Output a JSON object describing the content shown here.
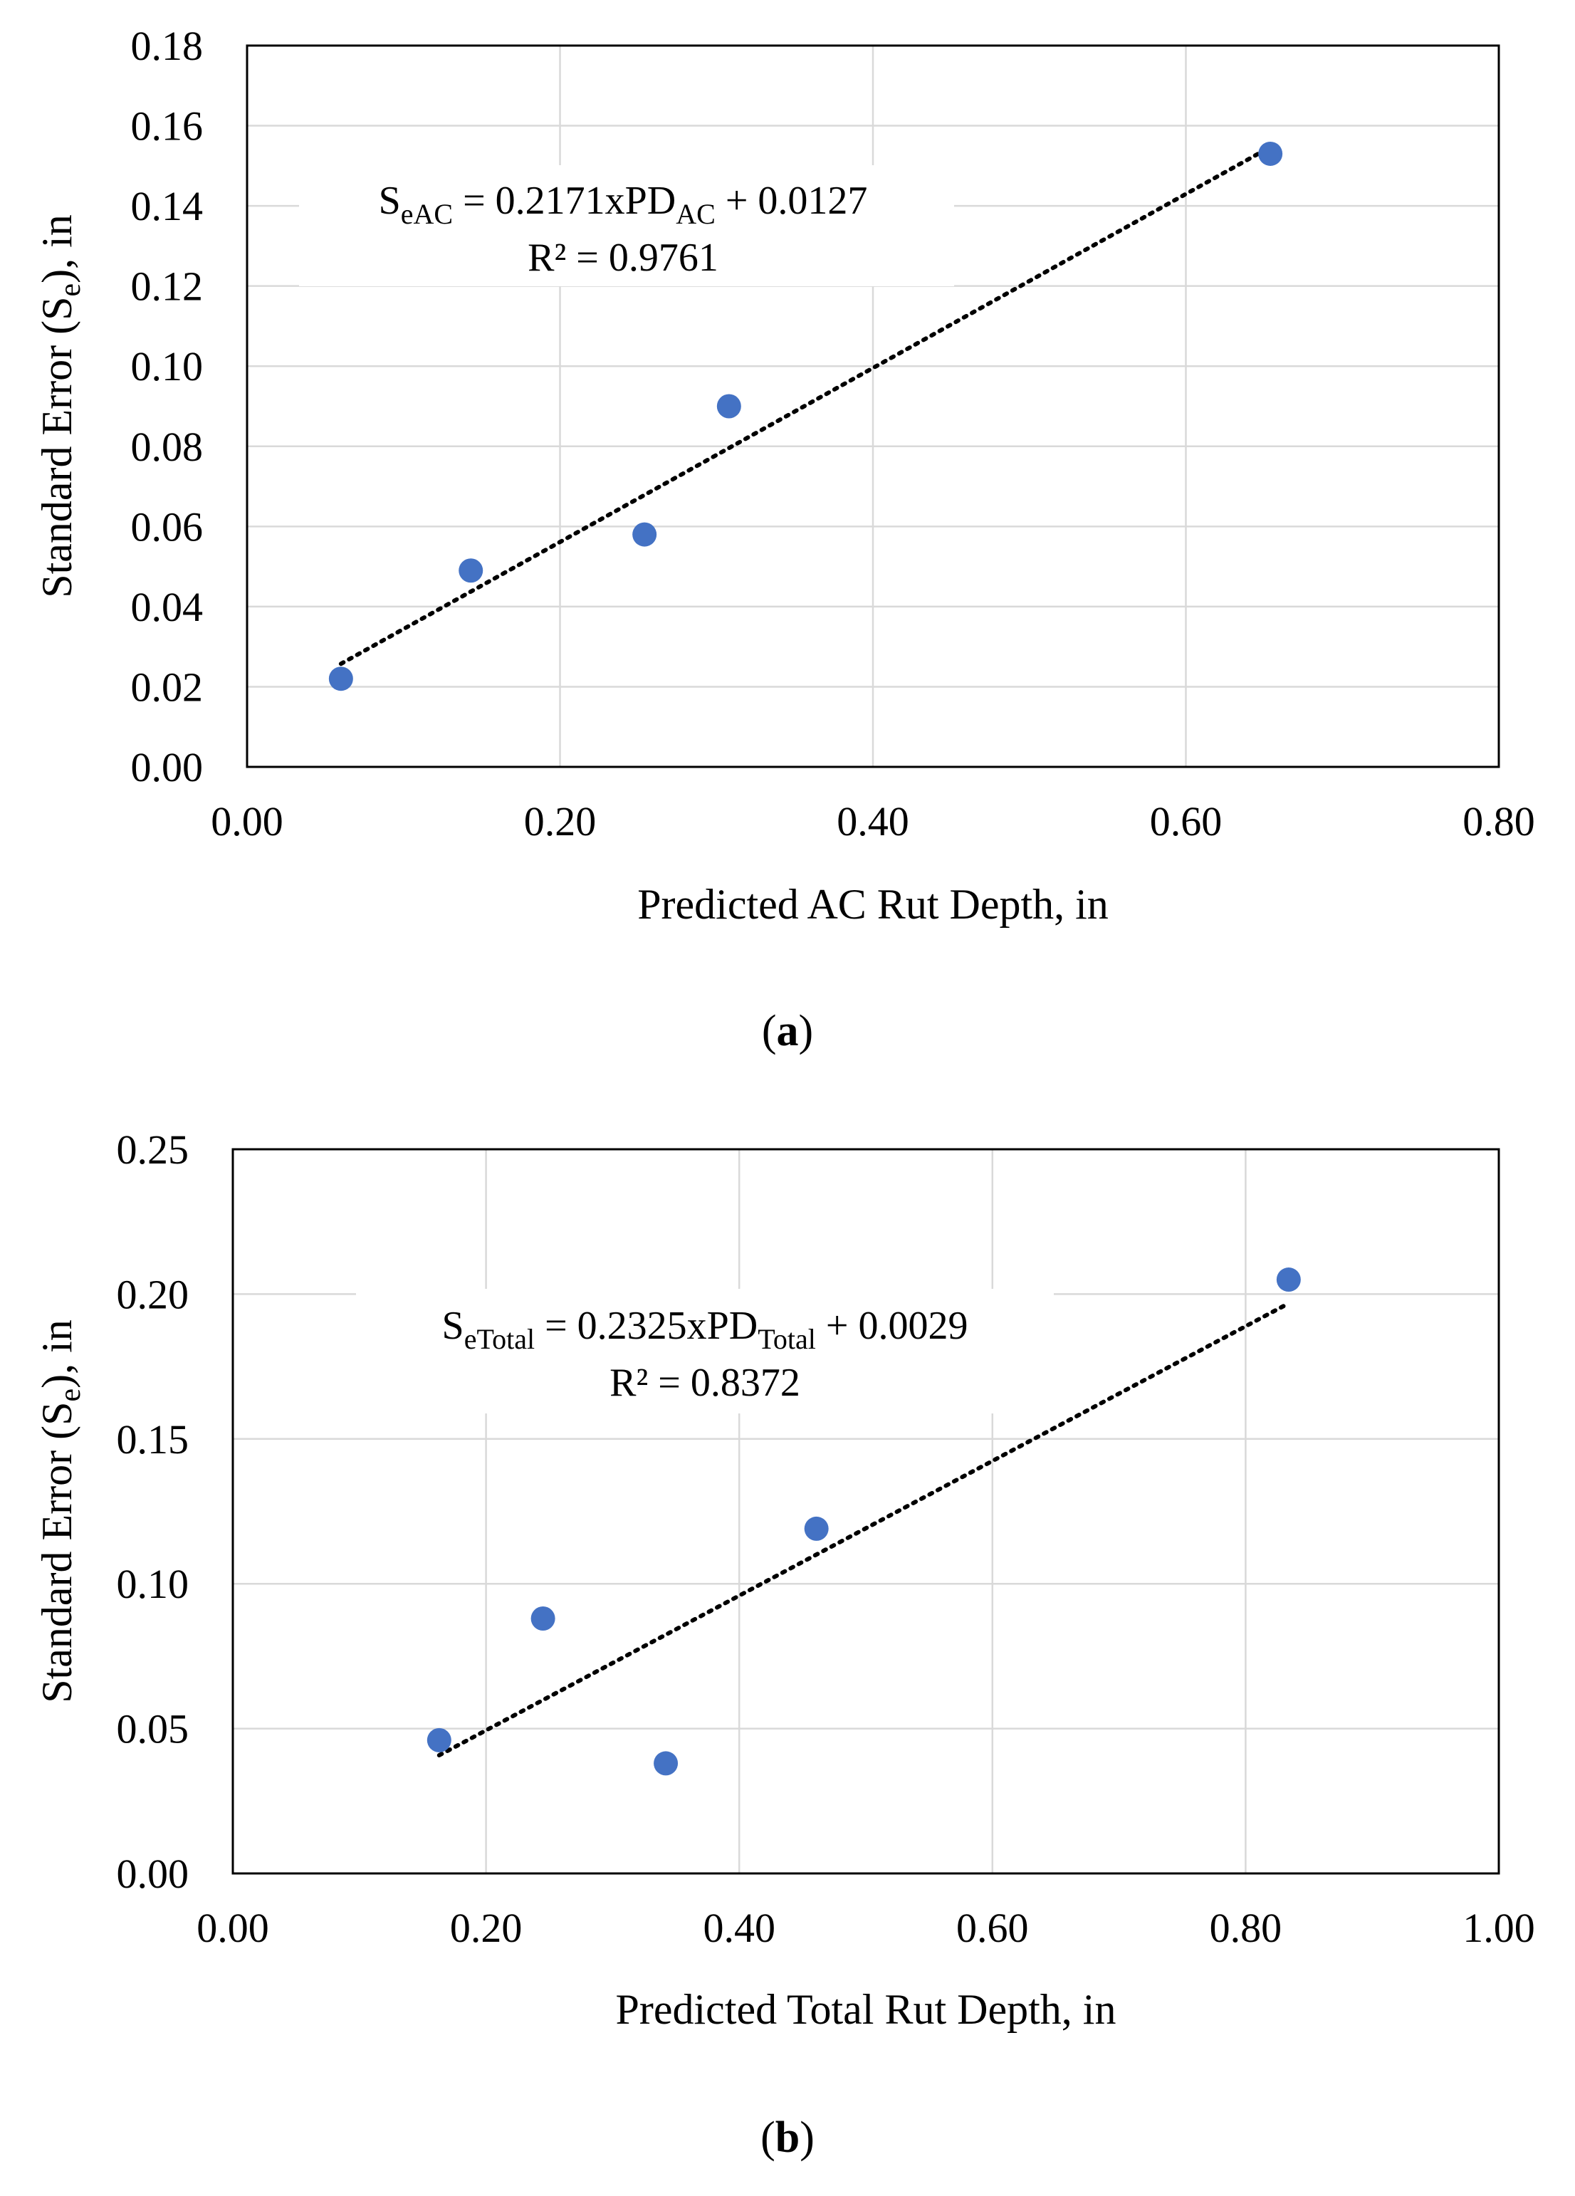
{
  "chart_data": [
    {
      "type": "scatter",
      "panel_label": "a",
      "xlabel": "Predicted AC Rut Depth, in",
      "ylabel": {
        "main": "Standard Error (S",
        "sub": "e",
        "tail": "), in"
      },
      "xlim": [
        0,
        0.8
      ],
      "ylim": [
        0,
        0.18
      ],
      "x_ticks": [
        "0.00",
        "0.20",
        "0.40",
        "0.60",
        "0.80"
      ],
      "y_ticks": [
        "0.00",
        "0.02",
        "0.04",
        "0.06",
        "0.08",
        "0.10",
        "0.12",
        "0.14",
        "0.16",
        "0.18"
      ],
      "grid": true,
      "marker_color": "#4472C4",
      "points": [
        {
          "x": 0.06,
          "y": 0.022
        },
        {
          "x": 0.143,
          "y": 0.049
        },
        {
          "x": 0.254,
          "y": 0.058
        },
        {
          "x": 0.308,
          "y": 0.09
        },
        {
          "x": 0.654,
          "y": 0.153
        }
      ],
      "trendline": {
        "slope": 0.2171,
        "intercept": 0.0127,
        "x_from": 0.06,
        "x_to": 0.654,
        "color": "#000000"
      },
      "equation": {
        "lhs": "S",
        "lhs_sub": "eAC",
        "mid": " = 0.2171xPD",
        "mid_sub": "AC",
        "tail": " + 0.0127",
        "r2": "R² = 0.9761"
      }
    },
    {
      "type": "scatter",
      "panel_label": "b",
      "xlabel": "Predicted Total Rut Depth, in",
      "ylabel": {
        "main": "Standard Error (S",
        "sub": "e",
        "tail": "), in"
      },
      "xlim": [
        0,
        1.0
      ],
      "ylim": [
        0,
        0.25
      ],
      "x_ticks": [
        "0.00",
        "0.20",
        "0.40",
        "0.60",
        "0.80",
        "1.00"
      ],
      "y_ticks": [
        "0.00",
        "0.05",
        "0.10",
        "0.15",
        "0.20",
        "0.25"
      ],
      "grid": true,
      "marker_color": "#4472C4",
      "points": [
        {
          "x": 0.163,
          "y": 0.046
        },
        {
          "x": 0.245,
          "y": 0.088
        },
        {
          "x": 0.342,
          "y": 0.038
        },
        {
          "x": 0.461,
          "y": 0.119
        },
        {
          "x": 0.834,
          "y": 0.205
        }
      ],
      "trendline": {
        "slope": 0.2325,
        "intercept": 0.0029,
        "x_from": 0.163,
        "x_to": 0.834,
        "color": "#000000"
      },
      "equation": {
        "lhs": "S",
        "lhs_sub": "eTotal",
        "mid": " = 0.2325xPD",
        "mid_sub": "Total",
        "tail": " + 0.0029",
        "r2": "R² = 0.8372"
      }
    }
  ]
}
